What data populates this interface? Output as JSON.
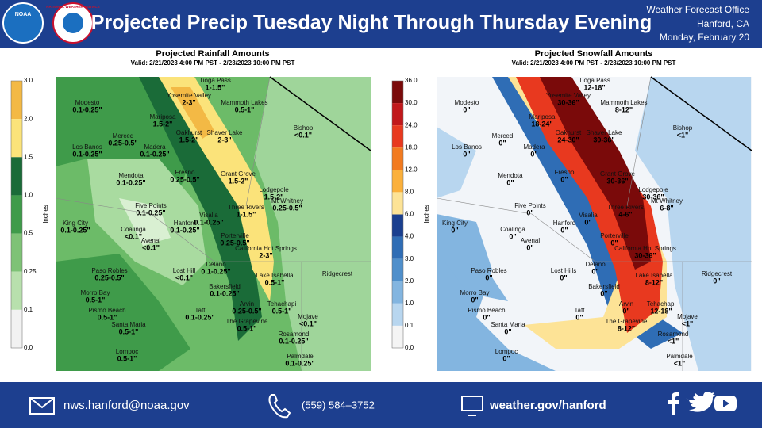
{
  "header": {
    "title": "Projected Precip Tuesday Night Through Thursday Evening",
    "noaa_logo": "NOAA",
    "nws_logo": "NATIONAL WEATHER SERVICE",
    "office": "Weather Forecast Office",
    "location": "Hanford, CA",
    "date": "Monday, February 20"
  },
  "rainfall": {
    "title": "Projected Rainfall Amounts",
    "valid": "Valid: 2/21/2023 4:00 PM PST - 2/23/2023 10:00 PM PST",
    "unit": "Inches",
    "scale": [
      "3.0",
      "2.0",
      "1.5",
      "1.0",
      "0.5",
      "0.25",
      "0.1",
      "0.0"
    ],
    "places": [
      {
        "name": "Tioga Pass",
        "amount": "1-1.5\""
      },
      {
        "name": "Yosemite Valley",
        "amount": "2-3\""
      },
      {
        "name": "Mammoth Lakes",
        "amount": "0.5-1\""
      },
      {
        "name": "Modesto",
        "amount": "0.1-0.25\""
      },
      {
        "name": "Mariposa",
        "amount": "1.5-2\""
      },
      {
        "name": "Bishop",
        "amount": "<0.1\""
      },
      {
        "name": "Oakhurst",
        "amount": "1.5-2\""
      },
      {
        "name": "Shaver Lake",
        "amount": "2-3\""
      },
      {
        "name": "Merced",
        "amount": "0.25-0.5\""
      },
      {
        "name": "Madera",
        "amount": "0.1-0.25\""
      },
      {
        "name": "Los Banos",
        "amount": "0.1-0.25\""
      },
      {
        "name": "Fresno",
        "amount": "0.25-0.5\""
      },
      {
        "name": "Mendota",
        "amount": "0.1-0.25\""
      },
      {
        "name": "Grant Grove",
        "amount": "1.5-2\""
      },
      {
        "name": "Lodgepole",
        "amount": "1.5-2\""
      },
      {
        "name": "Mt Whitney",
        "amount": "0.25-0.5\""
      },
      {
        "name": "Five Points",
        "amount": "0.1-0.25\""
      },
      {
        "name": "Three Rivers",
        "amount": "1-1.5\""
      },
      {
        "name": "Visalia",
        "amount": "0.1-0.25\""
      },
      {
        "name": "Hanford",
        "amount": "0.1-0.25\""
      },
      {
        "name": "King City",
        "amount": "0.1-0.25\""
      },
      {
        "name": "Coalinga",
        "amount": "<0.1\""
      },
      {
        "name": "Avenal",
        "amount": "<0.1\""
      },
      {
        "name": "Porterville",
        "amount": "0.25-0.5\""
      },
      {
        "name": "California Hot Springs",
        "amount": "2-3\""
      },
      {
        "name": "Delano",
        "amount": "0.1-0.25\""
      },
      {
        "name": "Lost Hill",
        "amount": "<0.1\""
      },
      {
        "name": "Paso Robles",
        "amount": "0.25-0.5\""
      },
      {
        "name": "Lake Isabella",
        "amount": "0.5-1\""
      },
      {
        "name": "Ridgecrest"
      },
      {
        "name": "Bakersfield",
        "amount": "0.1-0.25\""
      },
      {
        "name": "Morro Bay",
        "amount": "0.5-1\""
      },
      {
        "name": "Arvin",
        "amount": "0.25-0.5\""
      },
      {
        "name": "Tehachapi",
        "amount": "0.5-1\""
      },
      {
        "name": "Pismo Beach",
        "amount": "0.5-1\""
      },
      {
        "name": "Taft",
        "amount": "0.1-0.25\""
      },
      {
        "name": "Mojave",
        "amount": "<0.1\""
      },
      {
        "name": "The Grapevine",
        "amount": "0.5-1\""
      },
      {
        "name": "Santa Maria",
        "amount": "0.5-1\""
      },
      {
        "name": "Rosamond",
        "amount": "0.1-0.25\""
      },
      {
        "name": "Lompoc",
        "amount": "0.5-1\""
      },
      {
        "name": "Palmdale",
        "amount": "0.1-0.25\""
      }
    ]
  },
  "snowfall": {
    "title": "Projected Snowfall Amounts",
    "valid": "Valid: 2/21/2023 4:00 PM PST - 2/23/2023 10:00 PM PST",
    "unit": "Inches",
    "scale": [
      "36.0",
      "30.0",
      "24.0",
      "18.0",
      "12.0",
      "8.0",
      "6.0",
      "4.0",
      "3.0",
      "2.0",
      "1.0",
      "0.1",
      "0.0"
    ],
    "places": [
      {
        "name": "Tioga Pass",
        "amount": "12-18\""
      },
      {
        "name": "Yosemite Valley",
        "amount": "30-36\""
      },
      {
        "name": "Mammoth Lakes",
        "amount": "8-12\""
      },
      {
        "name": "Modesto",
        "amount": "0\""
      },
      {
        "name": "Mariposa",
        "amount": "18-24\""
      },
      {
        "name": "Bishop",
        "amount": "<1\""
      },
      {
        "name": "Oakhurst",
        "amount": "24-30\""
      },
      {
        "name": "Shaver Lake",
        "amount": "30-36\""
      },
      {
        "name": "Merced",
        "amount": "0\""
      },
      {
        "name": "Madera",
        "amount": "0\""
      },
      {
        "name": "Los Banos",
        "amount": "0\""
      },
      {
        "name": "Fresno",
        "amount": "0\""
      },
      {
        "name": "Mendota",
        "amount": "0\""
      },
      {
        "name": "Grant Grove",
        "amount": "30-36\""
      },
      {
        "name": "Lodgepole",
        "amount": "30-36\""
      },
      {
        "name": "Mt Whitney",
        "amount": "6-8\""
      },
      {
        "name": "Five Points",
        "amount": "0\""
      },
      {
        "name": "Three Rivers",
        "amount": "4-6\""
      },
      {
        "name": "Visalia",
        "amount": "0\""
      },
      {
        "name": "Hanford",
        "amount": "0\""
      },
      {
        "name": "King City",
        "amount": "0\""
      },
      {
        "name": "Coalinga",
        "amount": "0\""
      },
      {
        "name": "Avenal",
        "amount": "0\""
      },
      {
        "name": "Porterville",
        "amount": "0\""
      },
      {
        "name": "California Hot Springs",
        "amount": "30-36\""
      },
      {
        "name": "Delano",
        "amount": "0\""
      },
      {
        "name": "Lost Hills",
        "amount": "0\""
      },
      {
        "name": "Paso Robles",
        "amount": "0\""
      },
      {
        "name": "Lake Isabella",
        "amount": "8-12\""
      },
      {
        "name": "Ridgecrest",
        "amount": "0\""
      },
      {
        "name": "Bakersfield",
        "amount": "0\""
      },
      {
        "name": "Morro Bay",
        "amount": "0\""
      },
      {
        "name": "Arvin",
        "amount": "0\""
      },
      {
        "name": "Tehachapi",
        "amount": "12-18\""
      },
      {
        "name": "Pismo Beach",
        "amount": "0\""
      },
      {
        "name": "Taft",
        "amount": "0\""
      },
      {
        "name": "Mojave",
        "amount": "<1\""
      },
      {
        "name": "The Grapevine",
        "amount": "8-12\""
      },
      {
        "name": "Santa Maria",
        "amount": "0\""
      },
      {
        "name": "Rosamond",
        "amount": "<1\""
      },
      {
        "name": "Lompoc",
        "amount": "0\""
      },
      {
        "name": "Palmdale",
        "amount": "<1\""
      }
    ]
  },
  "footer": {
    "email": "nws.hanford@noaa.gov",
    "phone": "(559)  584–3752",
    "website": "weather.gov/hanford"
  }
}
